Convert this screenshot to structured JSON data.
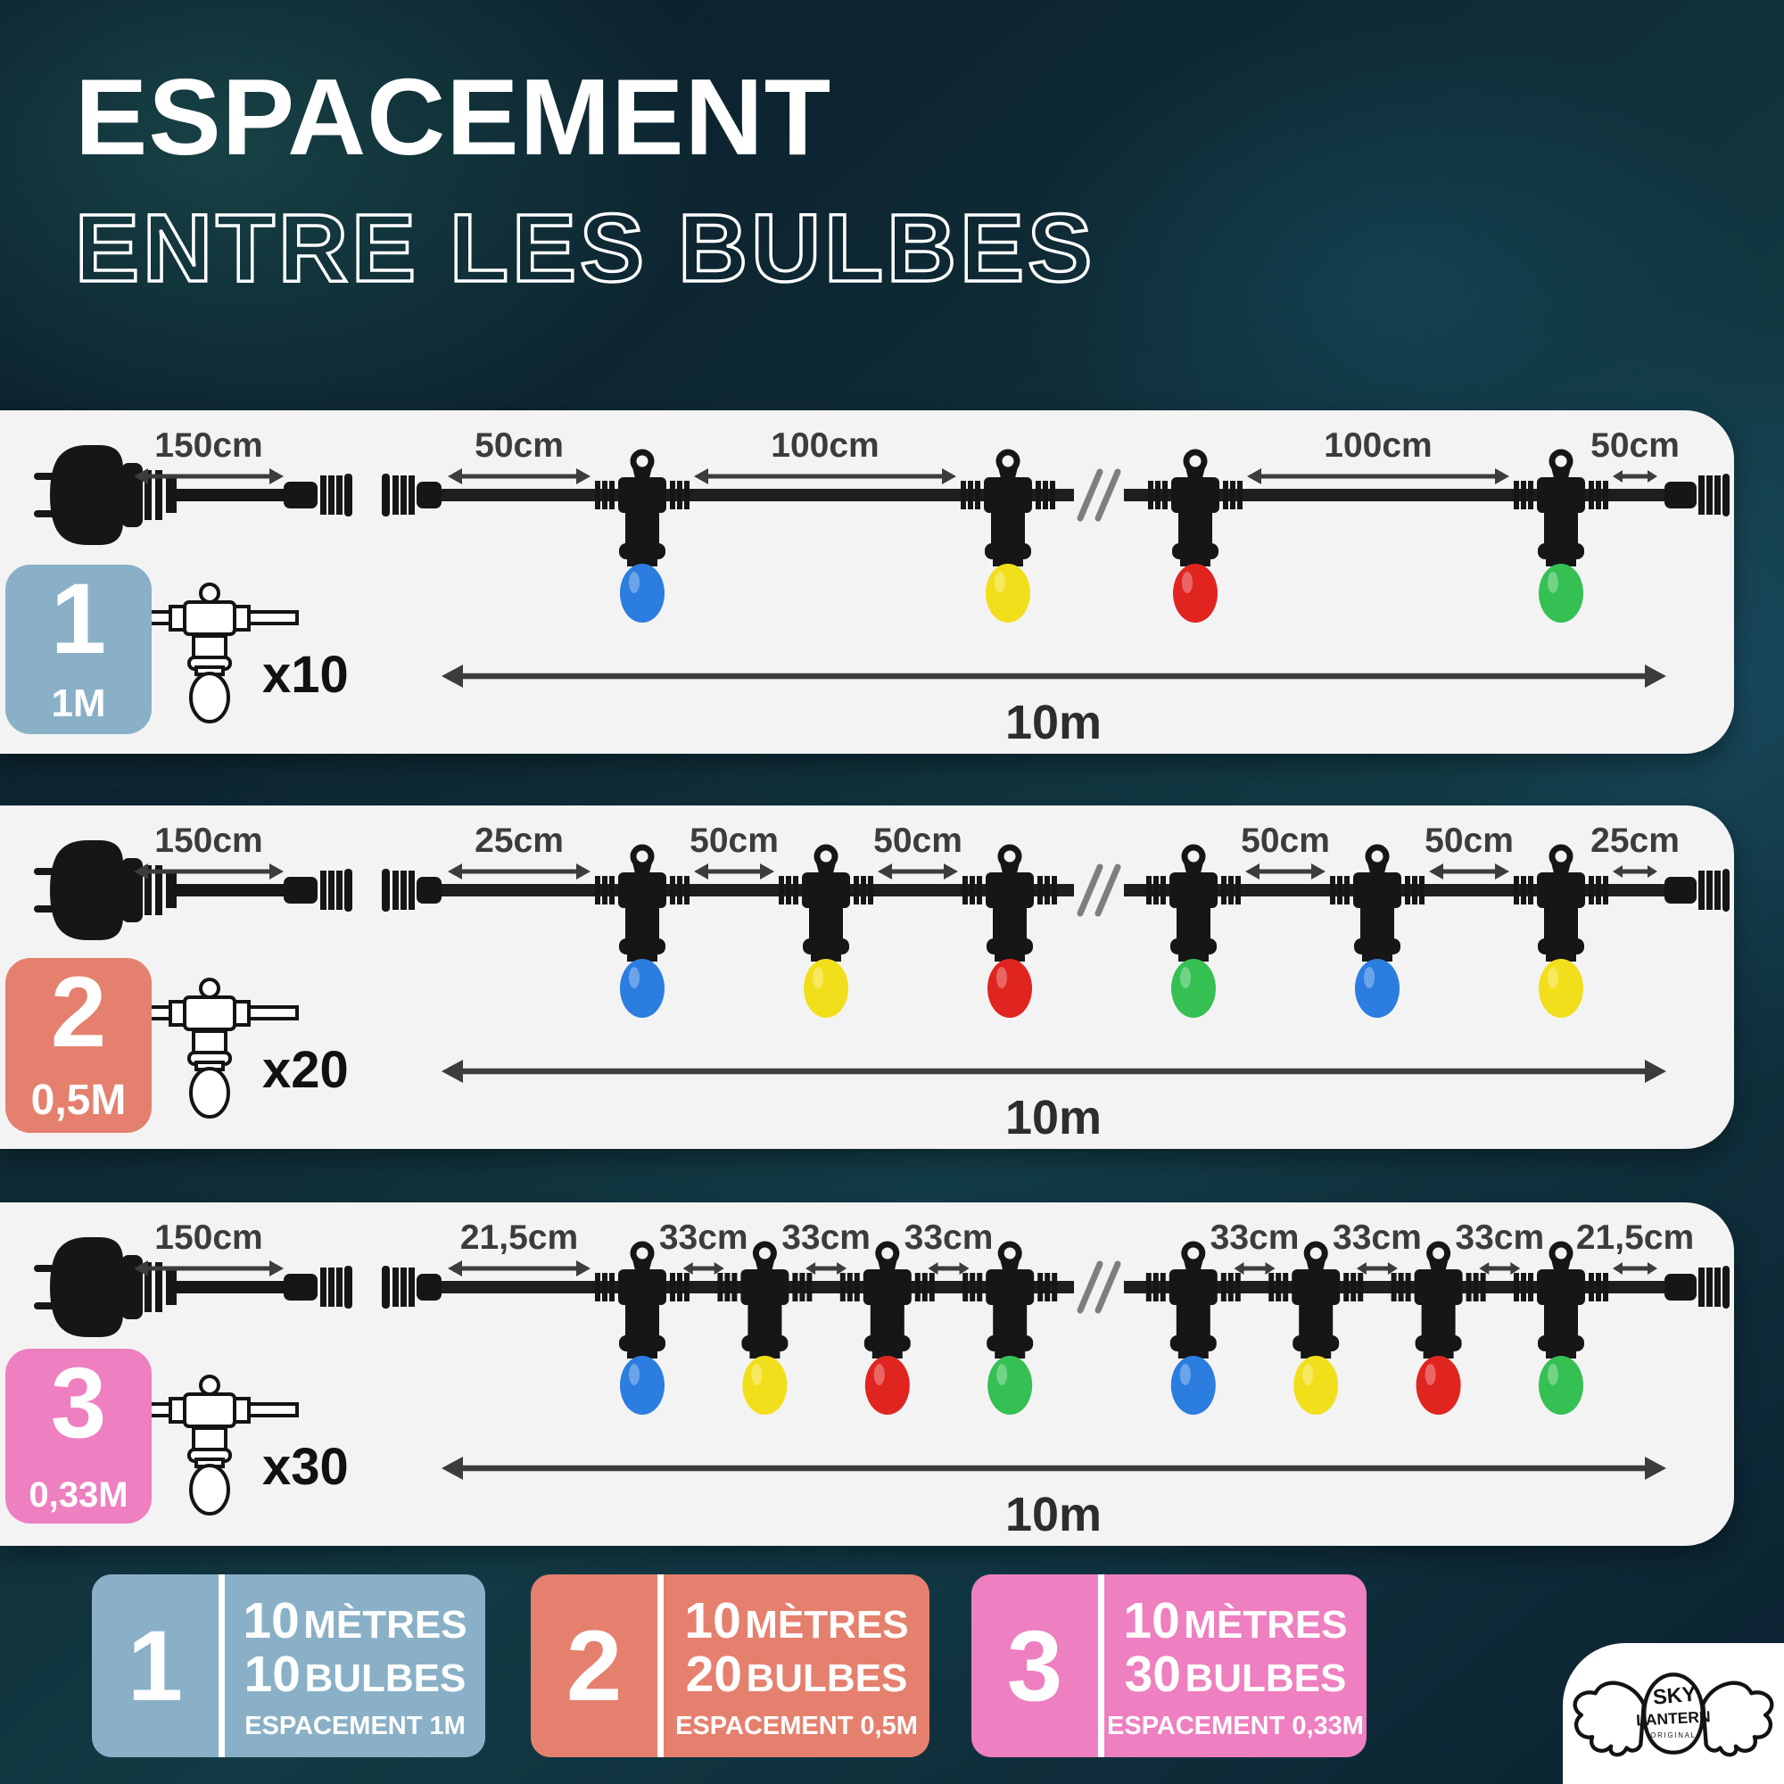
{
  "title": {
    "line1": "ESPACEMENT",
    "line2": "ENTRE LES BULBES"
  },
  "bulb_colors": {
    "blue": "#2b7de0",
    "yellow": "#f2df1b",
    "red": "#e02521",
    "green": "#35c054"
  },
  "ui_colors": {
    "panel": "#f3f3f4",
    "label_text": "#3c3c3c",
    "hardware": "#161616",
    "badge_blue": "#89b0c6",
    "badge_salmon": "#e5806e",
    "badge_pink": "#ee7fc0"
  },
  "rows": [
    {
      "number": "1",
      "spacing": "1M",
      "color": "#89b0c6",
      "count": "x10",
      "total": "10m",
      "lead": "150cm",
      "left_gaps": [
        "50cm",
        "100cm"
      ],
      "right_gaps": [
        "100cm",
        "50cm"
      ],
      "left_bulbs": [
        "blue",
        "yellow"
      ],
      "right_bulbs": [
        "red",
        "green"
      ]
    },
    {
      "number": "2",
      "spacing": "0,5M",
      "color": "#e5806e",
      "count": "x20",
      "total": "10m",
      "lead": "150cm",
      "left_gaps": [
        "25cm",
        "50cm",
        "50cm"
      ],
      "right_gaps": [
        "50cm",
        "50cm",
        "25cm"
      ],
      "left_bulbs": [
        "blue",
        "yellow",
        "red"
      ],
      "right_bulbs": [
        "green",
        "blue",
        "yellow"
      ]
    },
    {
      "number": "3",
      "spacing": "0,33M",
      "color": "#ee7fc0",
      "count": "x30",
      "total": "10m",
      "lead": "150cm",
      "left_gaps": [
        "21,5cm",
        "33cm",
        "33cm",
        "33cm"
      ],
      "right_gaps": [
        "33cm",
        "33cm",
        "33cm",
        "21,5cm"
      ],
      "left_bulbs": [
        "blue",
        "yellow",
        "red",
        "green"
      ],
      "right_bulbs": [
        "blue",
        "yellow",
        "red",
        "green"
      ]
    }
  ],
  "cards": [
    {
      "number": "1",
      "color": "#89b0c6",
      "value1": "10",
      "unit1": "MÈTRES",
      "value2": "10",
      "unit2": "BULBES",
      "footer": "ESPACEMENT 1M"
    },
    {
      "number": "2",
      "color": "#e5806e",
      "value1": "10",
      "unit1": "MÈTRES",
      "value2": "20",
      "unit2": "BULBES",
      "footer": "ESPACEMENT 0,5M"
    },
    {
      "number": "3",
      "color": "#ee7fc0",
      "value1": "10",
      "unit1": "MÈTRES",
      "value2": "30",
      "unit2": "BULBES",
      "footer": "ESPACEMENT 0,33M"
    }
  ],
  "logo": {
    "top": "SKY",
    "middle": "LANTERN",
    "bottom": "ORIGINAL"
  }
}
